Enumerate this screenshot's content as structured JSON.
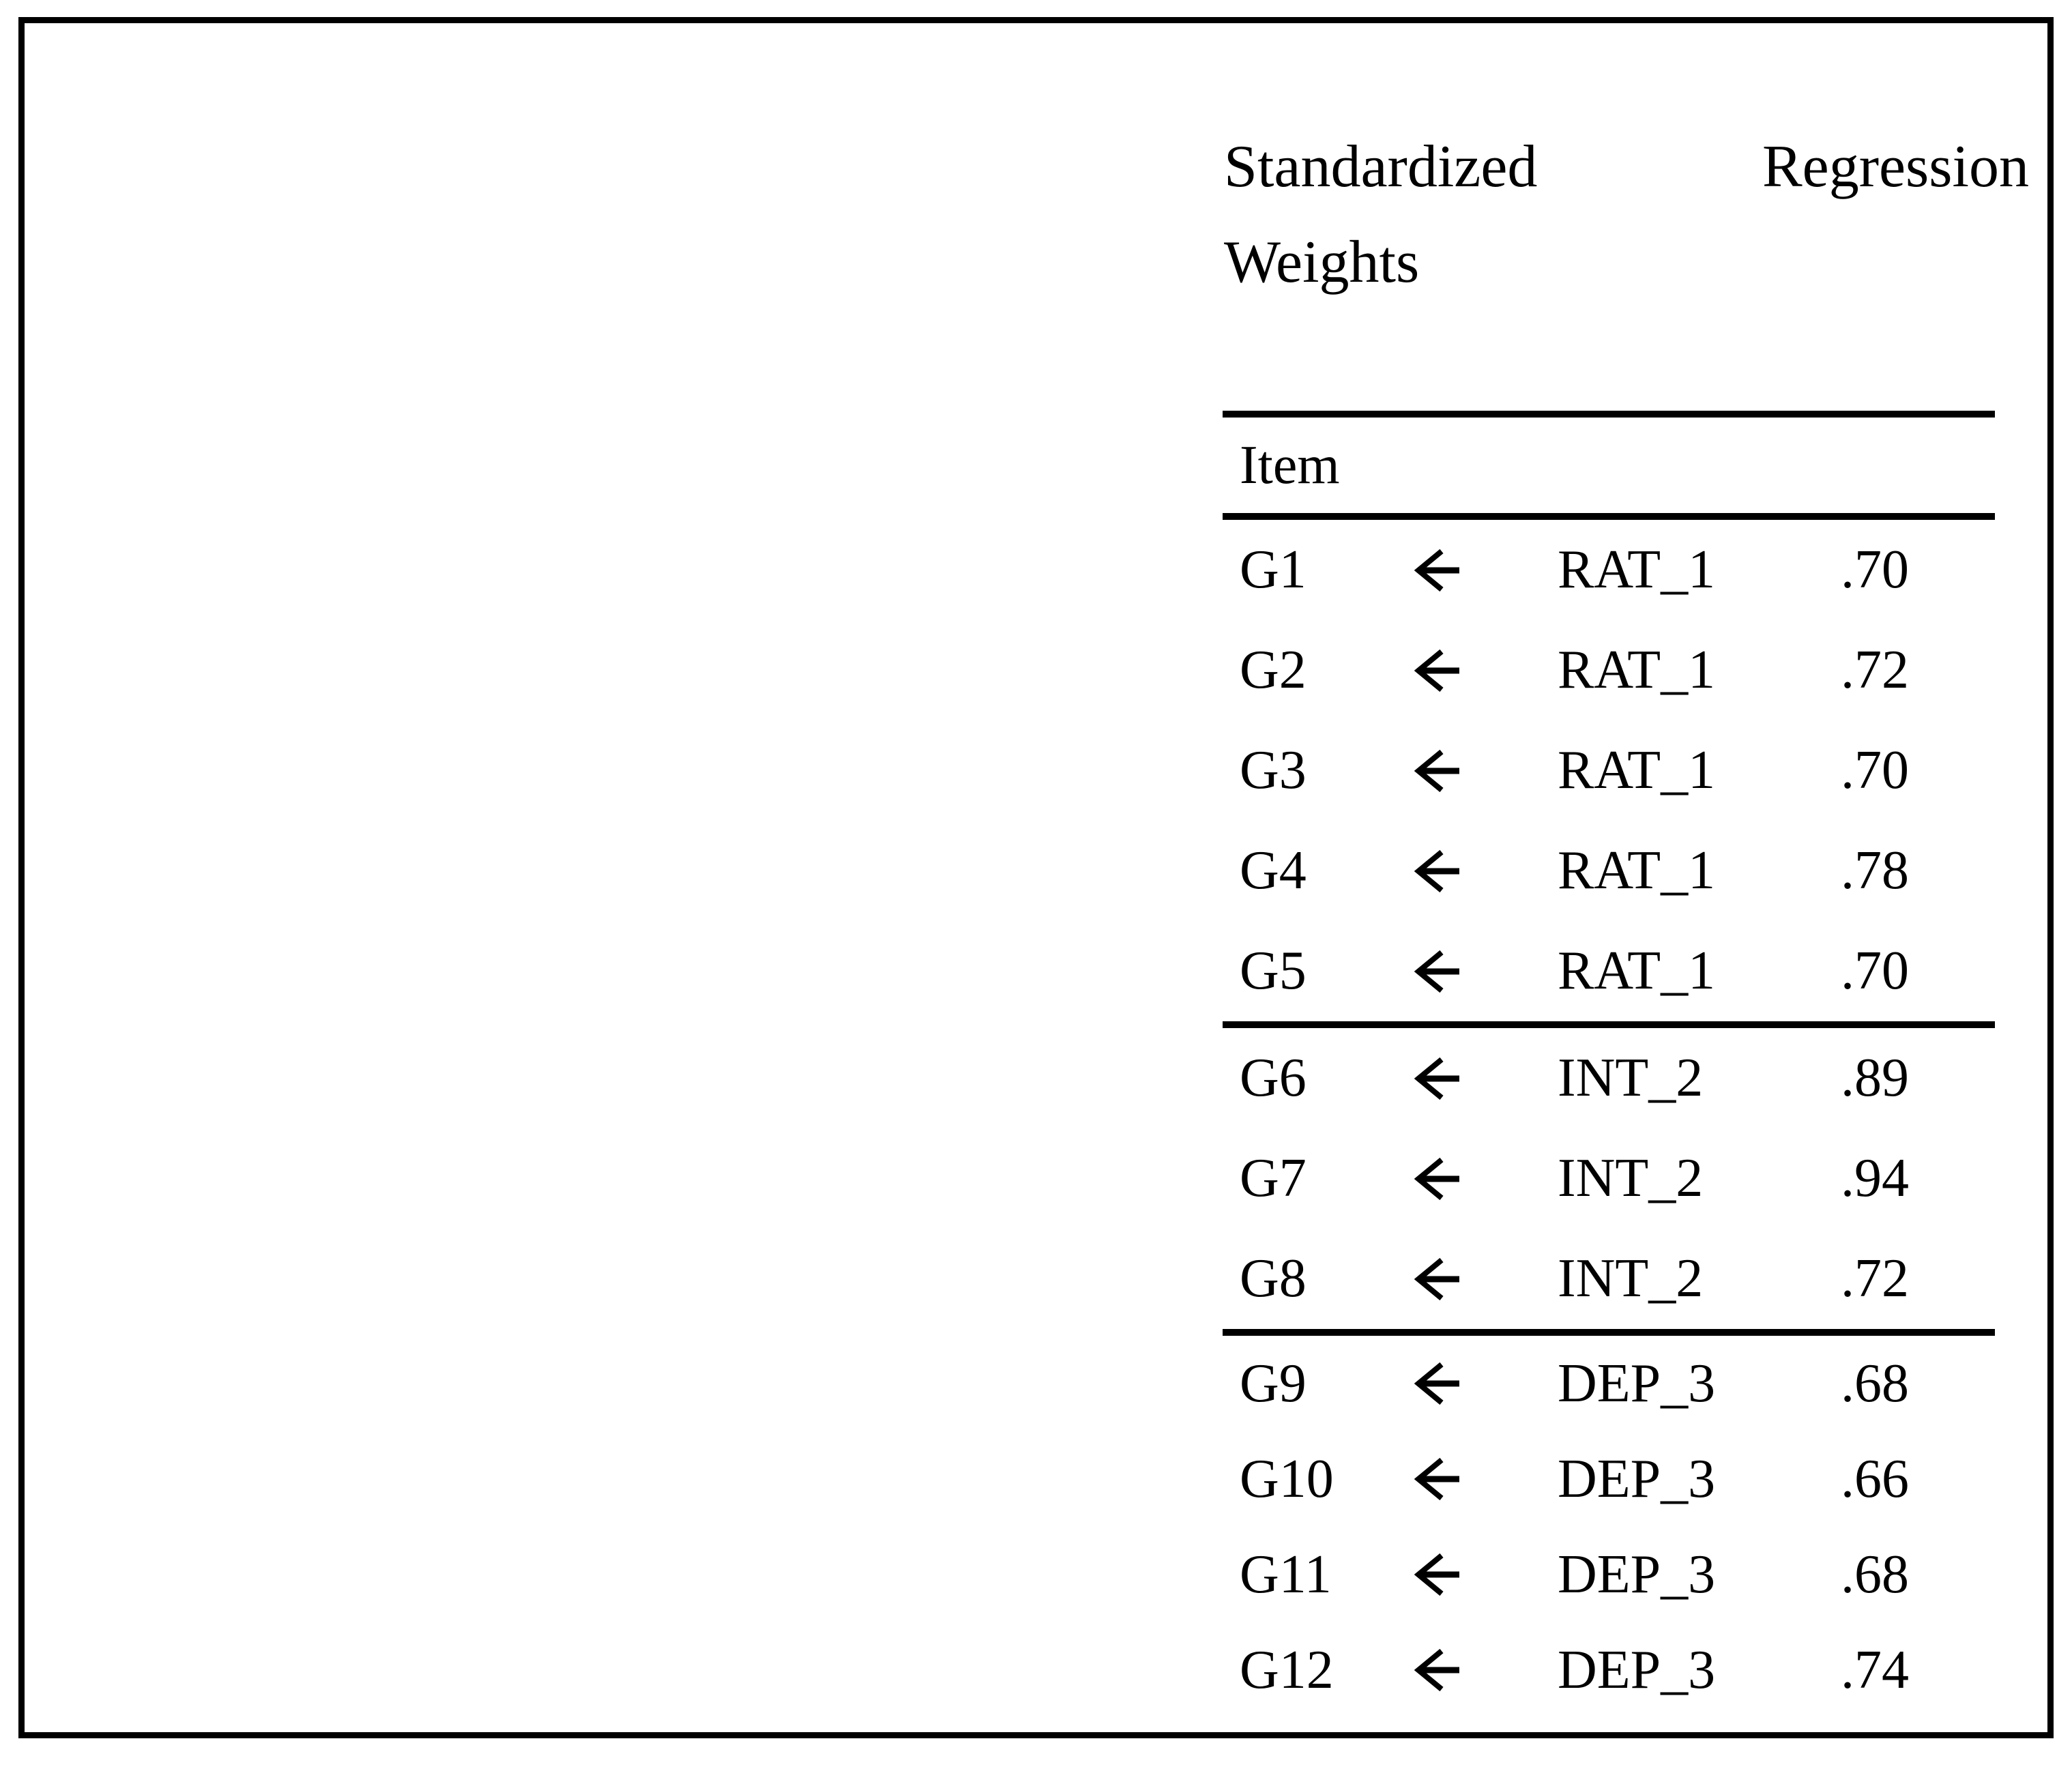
{
  "page": {
    "background_color": "#ffffff",
    "frame_border_color": "#000000"
  },
  "figure": {
    "title": {
      "line1_left": "Standardized",
      "line1_right": "Regression",
      "line2": "Weights"
    },
    "table": {
      "header": "Item",
      "arrow_icon": "left-arrow",
      "groups": [
        {
          "factor": "RAT_1",
          "rows": [
            {
              "item": "G1",
              "factor": "RAT_1",
              "weight": ".70"
            },
            {
              "item": "G2",
              "factor": "RAT_1",
              "weight": ".72"
            },
            {
              "item": "G3",
              "factor": "RAT_1",
              "weight": ".70"
            },
            {
              "item": "G4",
              "factor": "RAT_1",
              "weight": ".78"
            },
            {
              "item": "G5",
              "factor": "RAT_1",
              "weight": ".70"
            }
          ]
        },
        {
          "factor": "INT_2",
          "rows": [
            {
              "item": "G6",
              "factor": "INT_2",
              "weight": ".89"
            },
            {
              "item": "G7",
              "factor": "INT_2",
              "weight": ".94"
            },
            {
              "item": "G8",
              "factor": "INT_2",
              "weight": ".72"
            }
          ]
        },
        {
          "factor": "DEP_3",
          "rows": [
            {
              "item": "G9",
              "factor": "DEP_3",
              "weight": ".68"
            },
            {
              "item": "G10",
              "factor": "DEP_3",
              "weight": ".66"
            },
            {
              "item": "G11",
              "factor": "DEP_3",
              "weight": ".68"
            },
            {
              "item": "G12",
              "factor": "DEP_3",
              "weight": ".74"
            }
          ]
        }
      ]
    }
  }
}
